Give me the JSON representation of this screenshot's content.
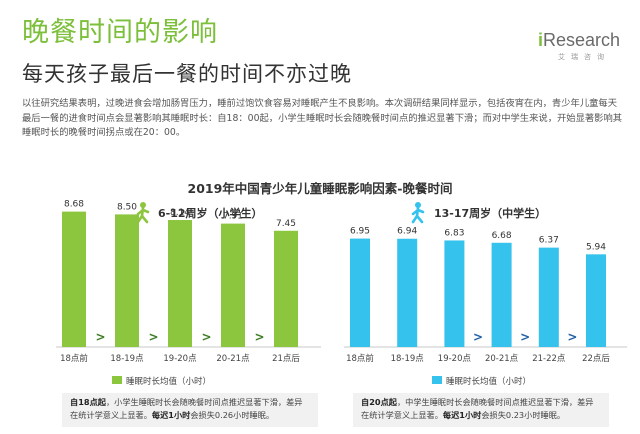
{
  "title": "晚餐时间的影响",
  "subtitle": "每天孩子最后一餐的时间不亦过晚",
  "logo": {
    "brand_prefix": "i",
    "brand_rest": "Research",
    "cn": "艾瑞咨询"
  },
  "intro": "以往研究结果表明，过晚进食会增加肠胃压力，睡前过饱饮食容易对睡眠产生不良影响。本次调研结果同样显示，包括夜宵在内，青少年儿童每天最后一餐的进食时间点会显著影响其睡眠时长：自18：00起，小学生睡眠时长会随晚餐时间点的推迟显著下滑；而对中学生来说，开始显著影响其睡眠时长的晚餐时间拐点或在20：00。",
  "chart_title": "2019年中国青少年儿童睡眠影响因素-晚餐时间",
  "colors": {
    "primary_green": "#8cc63f",
    "primary_blue": "#35c2ec",
    "arrow_green": "#3a7d22",
    "arrow_blue": "#1f5fa8",
    "title_green": "#7cbf3a"
  },
  "chart_data": [
    {
      "type": "bar",
      "group_label": "6-12周岁（小学生）",
      "icon": "child-walking-icon",
      "categories": [
        "18点前",
        "18-19点",
        "19-20点",
        "20-21点",
        "21点后"
      ],
      "series": [
        {
          "name": "睡眠时长均值（小时）",
          "values": [
            8.68,
            8.5,
            8.14,
            7.91,
            7.45
          ]
        }
      ],
      "arrows": [
        ">",
        ">",
        ">",
        ">"
      ],
      "ylim": [
        0,
        9
      ],
      "legend": "bottom",
      "grid": false
    },
    {
      "type": "bar",
      "group_label": "13-17周岁（中学生）",
      "icon": "teen-walking-icon",
      "categories": [
        "18点前",
        "18-19点",
        "19-20点",
        "20-21点",
        "21-22点",
        "22点后"
      ],
      "series": [
        {
          "name": "睡眠时长均值（小时）",
          "values": [
            6.95,
            6.94,
            6.83,
            6.68,
            6.37,
            5.94
          ]
        }
      ],
      "arrows": [
        "",
        "",
        ">",
        ">",
        ">"
      ],
      "ylim": [
        0,
        9
      ],
      "legend": "bottom",
      "grid": false
    }
  ],
  "notes": [
    {
      "lead": "自18点起",
      "text": "，小学生睡眠时长会随晚餐时间点推迟显著下滑，差异在统计学意义上显著。",
      "emph": "每迟1小时",
      "tail": "会损失0.26小时睡眠。"
    },
    {
      "lead": "自20点起",
      "text": "，中学生睡眠时长会随晚餐时间点推迟显著下滑，差异在统计学意义上显著。",
      "emph": "每迟1小时",
      "tail": "会损失0.23小时睡眠。"
    }
  ]
}
